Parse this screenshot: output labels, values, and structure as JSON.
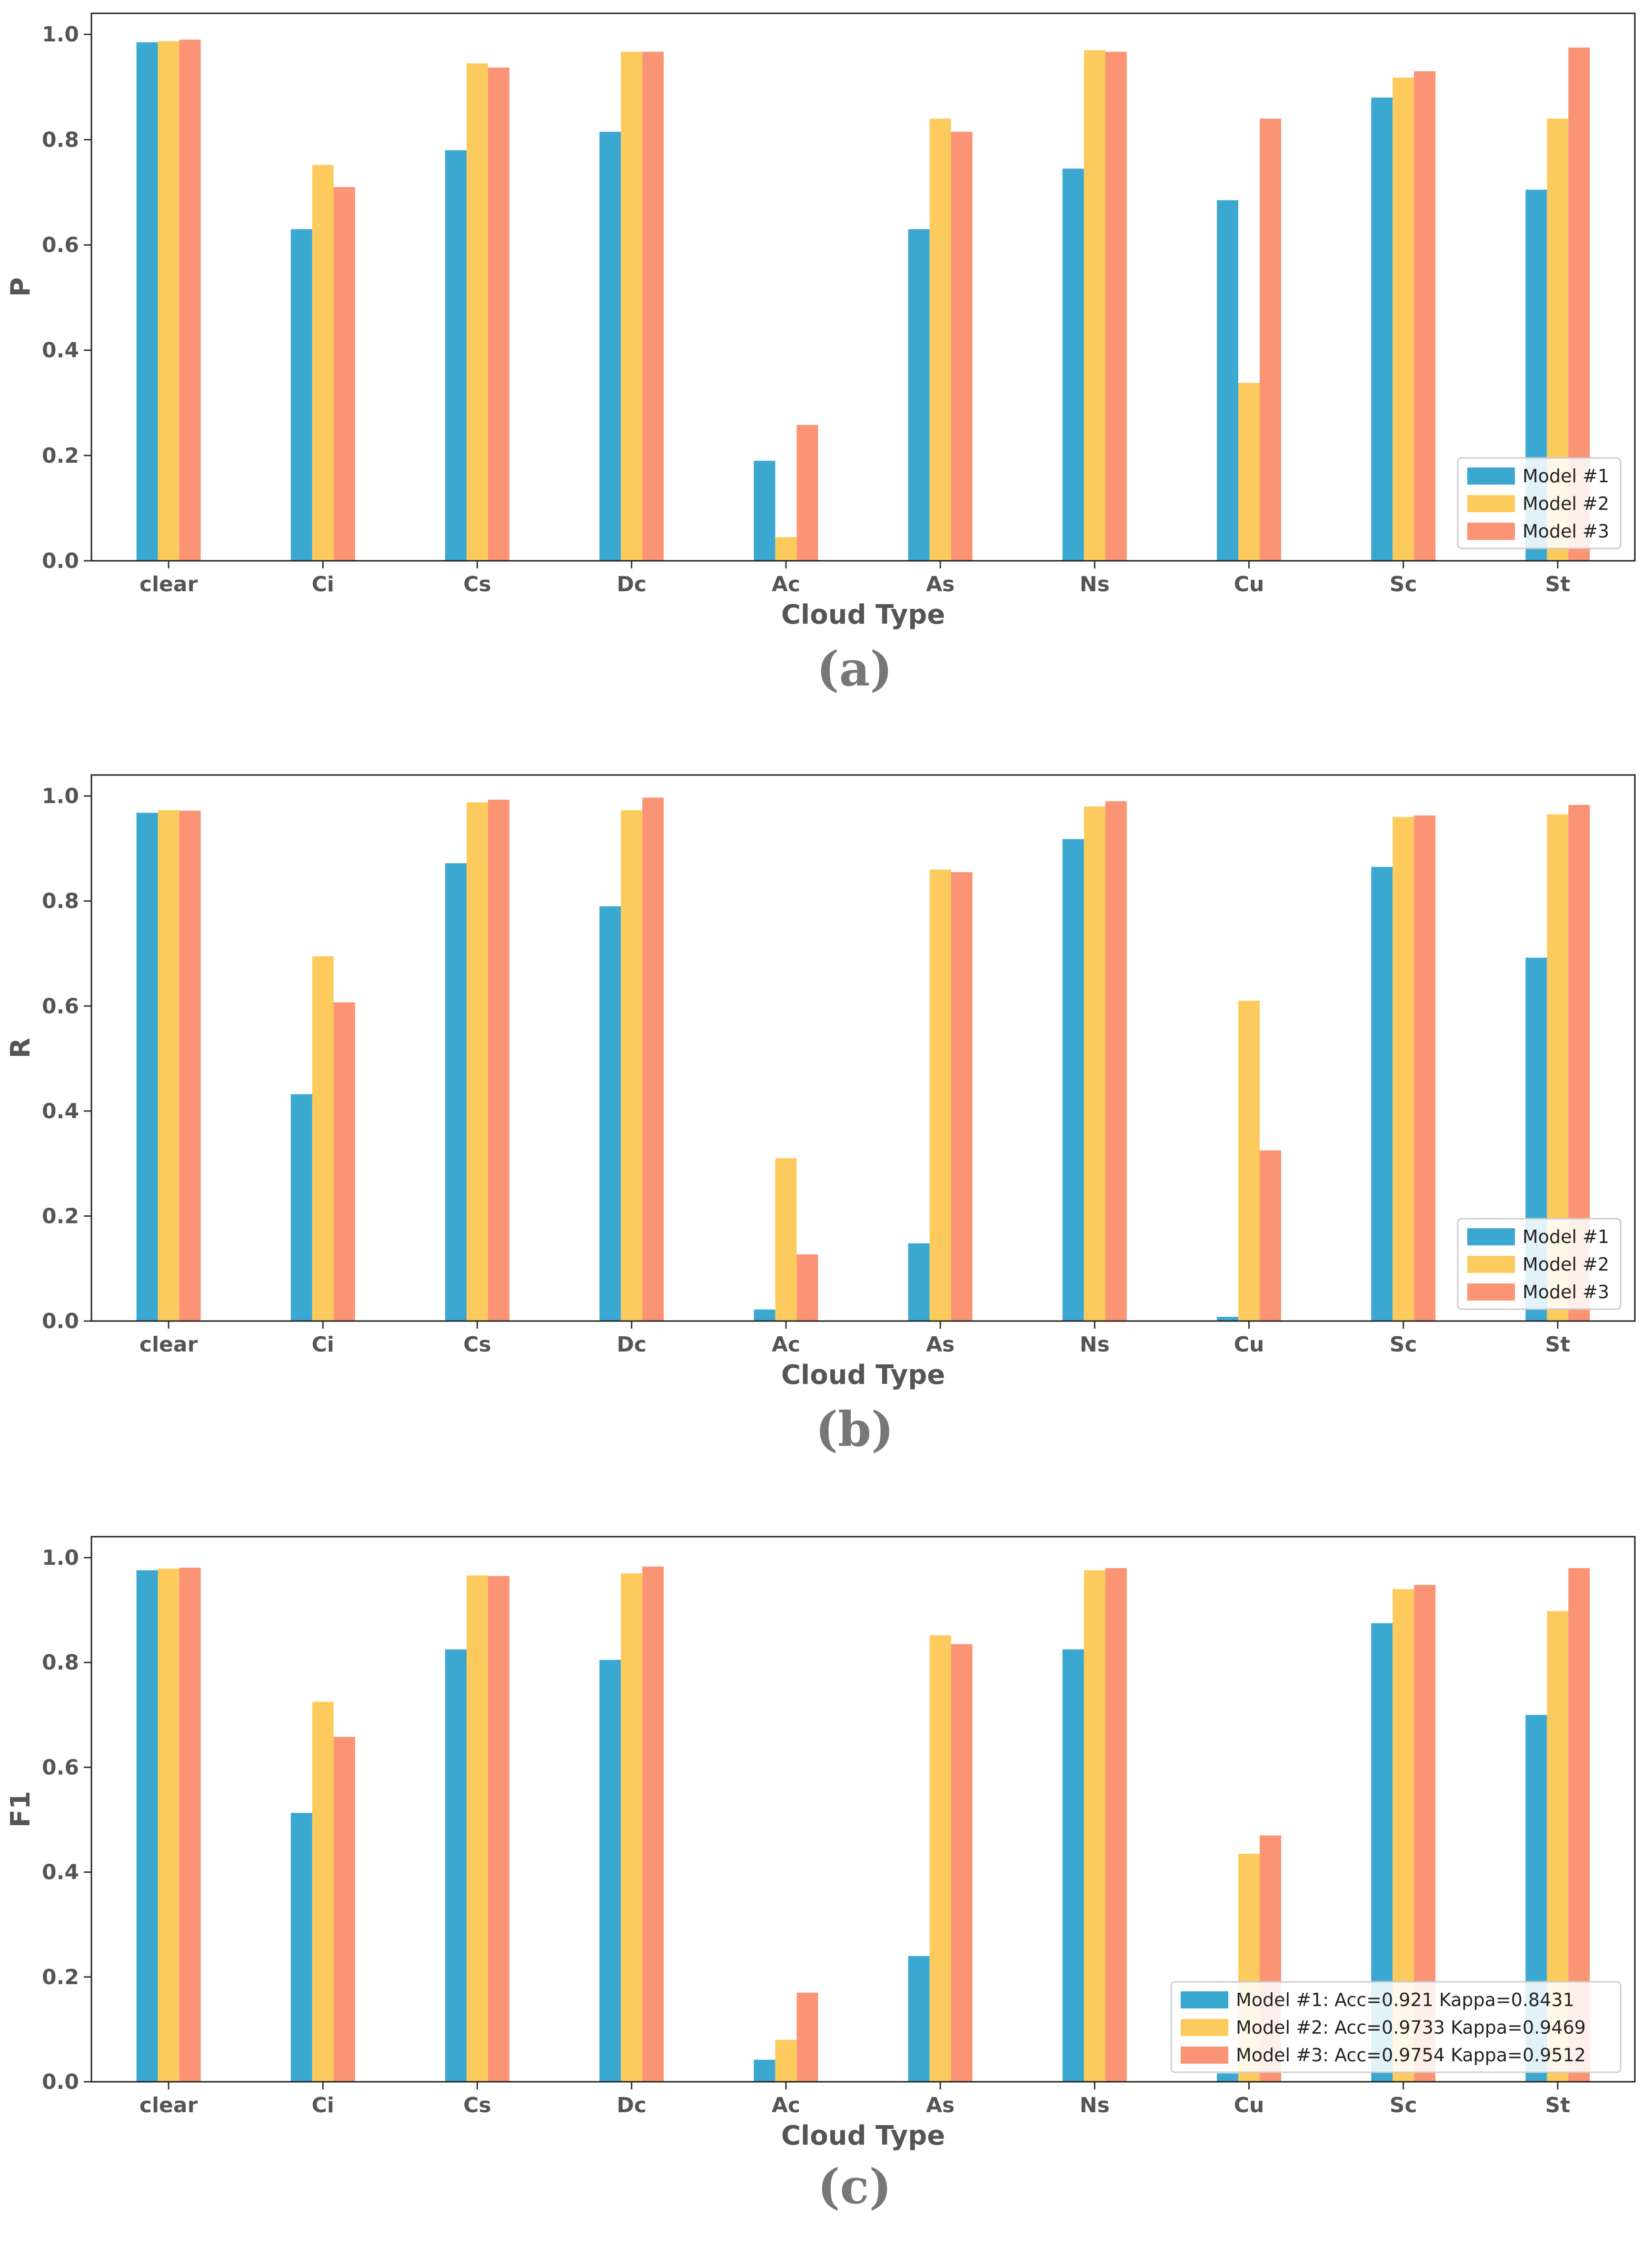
{
  "colors": {
    "model1": "#3ba8d2",
    "model2": "#fdcb5d",
    "model3": "#fb9375"
  },
  "chart_data": [
    {
      "type": "bar",
      "panel_label": "(a)",
      "xlabel": "Cloud Type",
      "ylabel": "P",
      "ylim": [
        0,
        1.04
      ],
      "yticks": [
        "0.0",
        "0.2",
        "0.4",
        "0.6",
        "0.8",
        "1.0"
      ],
      "categories": [
        "clear",
        "Ci",
        "Cs",
        "Dc",
        "Ac",
        "As",
        "Ns",
        "Cu",
        "Sc",
        "St"
      ],
      "legend_position": "lower-right",
      "series": [
        {
          "name": "Model #1",
          "values": [
            0.985,
            0.63,
            0.78,
            0.815,
            0.19,
            0.63,
            0.745,
            0.685,
            0.88,
            0.705
          ]
        },
        {
          "name": "Model #2",
          "values": [
            0.987,
            0.752,
            0.945,
            0.967,
            0.045,
            0.84,
            0.97,
            0.338,
            0.918,
            0.84
          ]
        },
        {
          "name": "Model #3",
          "values": [
            0.99,
            0.71,
            0.937,
            0.967,
            0.258,
            0.815,
            0.967,
            0.84,
            0.93,
            0.975
          ]
        }
      ]
    },
    {
      "type": "bar",
      "panel_label": "(b)",
      "xlabel": "Cloud Type",
      "ylabel": "R",
      "ylim": [
        0,
        1.04
      ],
      "yticks": [
        "0.0",
        "0.2",
        "0.4",
        "0.6",
        "0.8",
        "1.0"
      ],
      "categories": [
        "clear",
        "Ci",
        "Cs",
        "Dc",
        "Ac",
        "As",
        "Ns",
        "Cu",
        "Sc",
        "St"
      ],
      "legend_position": "lower-right",
      "series": [
        {
          "name": "Model #1",
          "values": [
            0.968,
            0.432,
            0.872,
            0.79,
            0.022,
            0.148,
            0.918,
            0.008,
            0.865,
            0.692
          ]
        },
        {
          "name": "Model #2",
          "values": [
            0.973,
            0.695,
            0.988,
            0.973,
            0.31,
            0.86,
            0.98,
            0.61,
            0.96,
            0.965
          ]
        },
        {
          "name": "Model #3",
          "values": [
            0.972,
            0.607,
            0.993,
            0.997,
            0.127,
            0.855,
            0.99,
            0.325,
            0.963,
            0.983
          ]
        }
      ]
    },
    {
      "type": "bar",
      "panel_label": "(c)",
      "xlabel": "Cloud Type",
      "ylabel": "F1",
      "ylim": [
        0,
        1.04
      ],
      "yticks": [
        "0.0",
        "0.2",
        "0.4",
        "0.6",
        "0.8",
        "1.0"
      ],
      "categories": [
        "clear",
        "Ci",
        "Cs",
        "Dc",
        "Ac",
        "As",
        "Ns",
        "Cu",
        "Sc",
        "St"
      ],
      "legend_position": "lower-right",
      "series": [
        {
          "name": "Model #1: Acc=0.921   Kappa=0.8431",
          "values": [
            0.976,
            0.513,
            0.825,
            0.805,
            0.042,
            0.24,
            0.825,
            0.016,
            0.875,
            0.7
          ]
        },
        {
          "name": "Model #2: Acc=0.9733 Kappa=0.9469",
          "values": [
            0.979,
            0.725,
            0.966,
            0.97,
            0.08,
            0.852,
            0.976,
            0.435,
            0.94,
            0.898
          ]
        },
        {
          "name": "Model #3: Acc=0.9754 Kappa=0.9512",
          "values": [
            0.981,
            0.658,
            0.965,
            0.983,
            0.17,
            0.835,
            0.98,
            0.47,
            0.948,
            0.98
          ]
        }
      ]
    }
  ]
}
